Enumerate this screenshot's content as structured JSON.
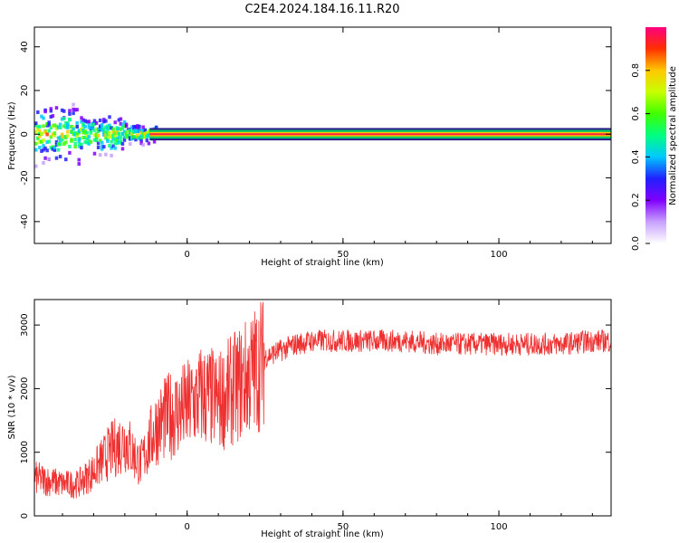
{
  "title": "C2E4.2024.184.16.11.R20",
  "chart_data": [
    {
      "type": "heatmap",
      "title": "C2E4.2024.184.16.11.R20",
      "xlabel": "Height of straight line (km)",
      "ylabel": "Frequency (Hz)",
      "xlim": [
        -49,
        136
      ],
      "ylim": [
        -50,
        49
      ],
      "x_ticks": [
        0,
        50,
        100
      ],
      "y_ticks": [
        -40,
        -20,
        0,
        20,
        40
      ],
      "description_of_values": "Normalized spectral amplitude concentrated at 0 Hz (band about ±2 Hz) along the whole range; broad scattered energy up to about ±15 Hz between -49 and -10 km.",
      "dc_band": {
        "center_hz": 0,
        "halfwidth_hz": 2,
        "x_start": -12,
        "x_end": 136
      },
      "scatter_region": [
        {
          "x_start": -49,
          "x_end": -35,
          "spread_hz": 12
        },
        {
          "x_start": -35,
          "x_end": -20,
          "spread_hz": 8
        },
        {
          "x_start": -20,
          "x_end": -10,
          "spread_hz": 4
        }
      ],
      "colorbar": {
        "label": "Normalized spectral amplitude",
        "range": [
          0,
          1
        ],
        "ticks": [
          "0.0",
          "0.2",
          "0.4",
          "0.6",
          "0.8"
        ],
        "colors": [
          "#ffffff",
          "#c8a0ff",
          "#8000ff",
          "#2020ff",
          "#00c8ff",
          "#00ff80",
          "#40ff00",
          "#c8ff00",
          "#ffc800",
          "#ff3000",
          "#ff0080"
        ]
      },
      "grid": false
    },
    {
      "type": "line",
      "xlabel": "Height of straight line (km)",
      "ylabel": "SNR (10 * v/v)",
      "xlim": [
        -49,
        136
      ],
      "ylim": [
        0,
        3400
      ],
      "x_ticks": [
        0,
        50,
        100
      ],
      "y_ticks": [
        0,
        1000,
        2000,
        3000
      ],
      "series": [
        {
          "color": "#ee3030",
          "x": [
            -49,
            -40,
            -35,
            -30,
            -25,
            -20,
            -15,
            -10,
            -5,
            0,
            5,
            10,
            15,
            20,
            25,
            30,
            35,
            40,
            50,
            60,
            70,
            80,
            90,
            100,
            110,
            120,
            130,
            136
          ],
          "y": [
            600,
            500,
            500,
            700,
            1000,
            1200,
            800,
            1400,
            1600,
            1700,
            1900,
            1800,
            2000,
            2200,
            2500,
            2600,
            2700,
            2750,
            2750,
            2750,
            2750,
            2700,
            2700,
            2700,
            2700,
            2700,
            2750,
            2750
          ]
        }
      ],
      "grid": false
    }
  ]
}
